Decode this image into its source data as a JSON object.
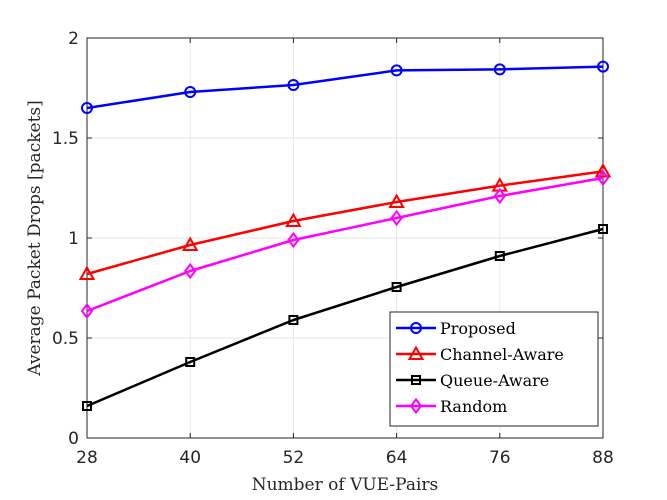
{
  "chart_data": {
    "type": "line",
    "title": "",
    "xlabel": "Number of VUE-Pairs",
    "ylabel": "Average Packet Drops [packets]",
    "x": [
      28,
      40,
      52,
      64,
      76,
      88
    ],
    "xlim": [
      28,
      88
    ],
    "ylim": [
      0,
      2
    ],
    "xticks": [
      "28",
      "40",
      "52",
      "64",
      "76",
      "88"
    ],
    "yticks": [
      "0",
      "0.5",
      "1",
      "1.5",
      "2"
    ],
    "grid": true,
    "legend_position": "bottom-right",
    "series": [
      {
        "name": "Proposed",
        "color": "#0000ff",
        "marker": "circle",
        "values": [
          1.65,
          1.73,
          1.765,
          1.838,
          1.843,
          1.857
        ]
      },
      {
        "name": "Channel-Aware",
        "color": "#ff0000",
        "marker": "triangle",
        "values": [
          0.82,
          0.965,
          1.085,
          1.18,
          1.262,
          1.333
        ]
      },
      {
        "name": "Queue-Aware",
        "color": "#000000",
        "marker": "square",
        "values": [
          0.16,
          0.38,
          0.59,
          0.755,
          0.91,
          1.045
        ]
      },
      {
        "name": "Random",
        "color": "#ff00ff",
        "marker": "diamond",
        "values": [
          0.635,
          0.835,
          0.99,
          1.1,
          1.21,
          1.3
        ]
      }
    ]
  }
}
